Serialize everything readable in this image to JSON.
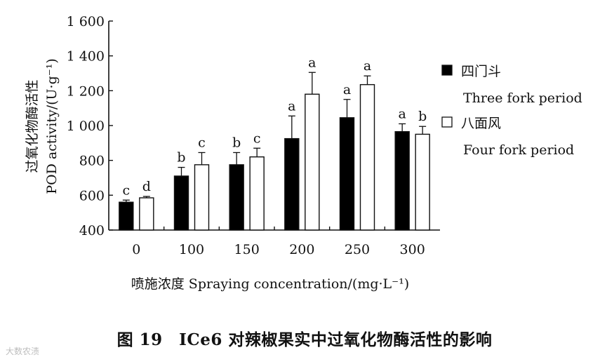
{
  "chart_data": {
    "type": "bar",
    "categories": [
      "0",
      "100",
      "150",
      "200",
      "250",
      "300"
    ],
    "series": [
      {
        "name": "四门斗",
        "name_en": "Three fork period",
        "fill": "#000000",
        "values": [
          560,
          710,
          775,
          925,
          1045,
          965
        ],
        "errors": [
          12,
          50,
          70,
          130,
          105,
          45
        ],
        "letters": [
          "c",
          "b",
          "b",
          "a",
          "a",
          "a"
        ]
      },
      {
        "name": "八面风",
        "name_en": "Four fork period",
        "fill": "#ffffff",
        "values": [
          585,
          775,
          820,
          1180,
          1235,
          950
        ],
        "errors": [
          8,
          70,
          50,
          125,
          50,
          45
        ],
        "letters": [
          "d",
          "c",
          "c",
          "a",
          "a",
          "b"
        ]
      }
    ],
    "ylim": [
      400,
      1600
    ],
    "yticks": [
      {
        "value": 400,
        "label": "400"
      },
      {
        "value": 600,
        "label": "600"
      },
      {
        "value": 800,
        "label": "800"
      },
      {
        "value": 1000,
        "label": "1 000"
      },
      {
        "value": 1200,
        "label": "1 200"
      },
      {
        "value": 1400,
        "label": "1 400"
      },
      {
        "value": 1600,
        "label": "1 600"
      }
    ],
    "ylabel_zh": "过氧化物酶活性",
    "ylabel_en": "POD activity/(U·g⁻¹)",
    "xlabel": "喷施浓度 Spraying concentration/(mg·L⁻¹)",
    "legend_position": "right",
    "grid": false
  },
  "caption": "图 19　ICe6 对辣椒果实中过氧化物酶活性的影响",
  "watermark": "大数农渍"
}
